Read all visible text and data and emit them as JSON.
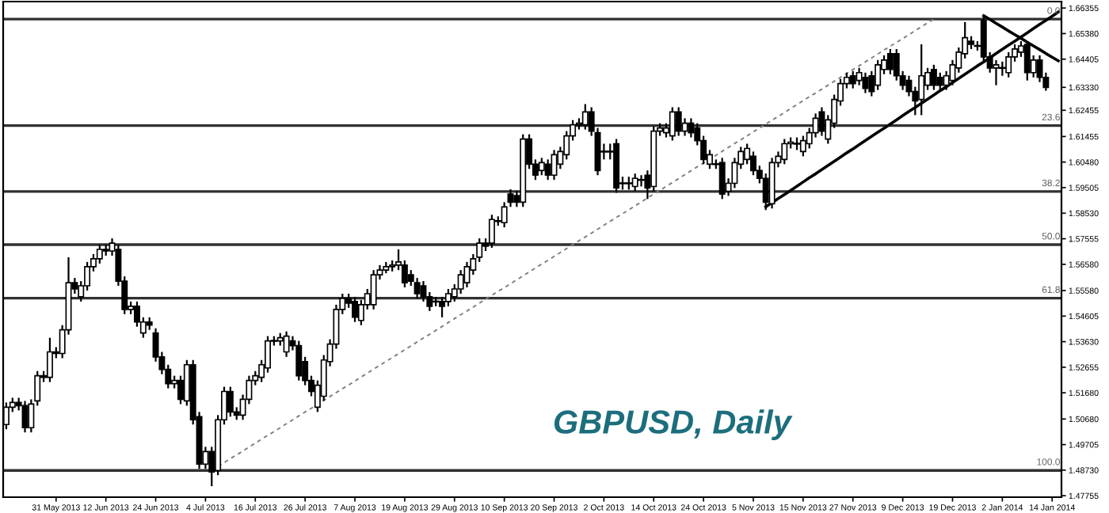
{
  "chart_data": {
    "type": "candlestick",
    "title": "GBPUSD, Daily",
    "categories": [
      null,
      null,
      null,
      null,
      null,
      null,
      null,
      null,
      "31 May 2013",
      null,
      null,
      null,
      null,
      null,
      null,
      null,
      "12 Jun 2013",
      null,
      null,
      null,
      null,
      null,
      null,
      null,
      "24 Jun 2013",
      null,
      null,
      null,
      null,
      null,
      null,
      null,
      "4 Jul 2013",
      null,
      null,
      null,
      null,
      null,
      null,
      null,
      "16 Jul 2013",
      null,
      null,
      null,
      null,
      null,
      null,
      null,
      "26 Jul 2013",
      null,
      null,
      null,
      null,
      null,
      null,
      null,
      "7 Aug 2013",
      null,
      null,
      null,
      null,
      null,
      null,
      null,
      "19 Aug 2013",
      null,
      null,
      null,
      null,
      null,
      null,
      null,
      "29 Aug 2013",
      null,
      null,
      null,
      null,
      null,
      null,
      null,
      "10 Sep 2013",
      null,
      null,
      null,
      null,
      null,
      null,
      null,
      "20 Sep 2013",
      null,
      null,
      null,
      null,
      null,
      null,
      null,
      "2 Oct 2013",
      null,
      null,
      null,
      null,
      null,
      null,
      null,
      "14 Oct 2013",
      null,
      null,
      null,
      null,
      null,
      null,
      null,
      "24 Oct 2013",
      null,
      null,
      null,
      null,
      null,
      null,
      null,
      "5 Nov 2013",
      null,
      null,
      null,
      null,
      null,
      null,
      null,
      "15 Nov 2013",
      null,
      null,
      null,
      null,
      null,
      null,
      null,
      "27 Nov 2013",
      null,
      null,
      null,
      null,
      null,
      null,
      null,
      "9 Dec 2013",
      null,
      null,
      null,
      null,
      null,
      null,
      null,
      "19 Dec 2013",
      null,
      null,
      null,
      null,
      null,
      null,
      null,
      "2 Jan 2014",
      null,
      null,
      null,
      null,
      null,
      null,
      null,
      "14 Jan 2014",
      null
    ],
    "ohlc": [
      [
        1.5047,
        1.5131,
        1.5029,
        1.5113
      ],
      [
        1.5113,
        1.5149,
        1.5095,
        1.5131
      ],
      [
        1.5131,
        1.5149,
        1.5101,
        1.5119
      ],
      [
        1.5119,
        1.5137,
        1.5017,
        1.5035
      ],
      [
        1.5035,
        1.5143,
        1.5017,
        1.5125
      ],
      [
        1.5137,
        1.5251,
        1.5119,
        1.5233
      ],
      [
        1.5233,
        1.5251,
        1.5209,
        1.5227
      ],
      [
        1.5227,
        1.5378,
        1.5209,
        1.5324
      ],
      [
        1.5324,
        1.5342,
        1.53,
        1.5318
      ],
      [
        1.5318,
        1.5426,
        1.53,
        1.5408
      ],
      [
        1.5408,
        1.5685,
        1.539,
        1.5588
      ],
      [
        1.5588,
        1.5606,
        1.5546,
        1.5564
      ],
      [
        1.5534,
        1.5594,
        1.5516,
        1.5576
      ],
      [
        1.5576,
        1.5667,
        1.5558,
        1.5649
      ],
      [
        1.5649,
        1.5697,
        1.5631,
        1.5679
      ],
      [
        1.5679,
        1.5733,
        1.5661,
        1.5715
      ],
      [
        1.5715,
        1.5733,
        1.5691,
        1.5709
      ],
      [
        1.5709,
        1.5757,
        1.5691,
        1.5739
      ],
      [
        1.5715,
        1.5733,
        1.5576,
        1.5594
      ],
      [
        1.5594,
        1.5612,
        1.5468,
        1.5486
      ],
      [
        1.5486,
        1.5516,
        1.5468,
        1.5498
      ],
      [
        1.5498,
        1.5516,
        1.542,
        1.5438
      ],
      [
        1.5396,
        1.5456,
        1.5378,
        1.5438
      ],
      [
        1.5438,
        1.5456,
        1.5408,
        1.5426
      ],
      [
        1.5396,
        1.5414,
        1.5287,
        1.5305
      ],
      [
        1.5305,
        1.5324,
        1.5239,
        1.5257
      ],
      [
        1.5257,
        1.5275,
        1.5185,
        1.5203
      ],
      [
        1.5203,
        1.5233,
        1.5185,
        1.5215
      ],
      [
        1.5215,
        1.5233,
        1.5125,
        1.5143
      ],
      [
        1.5137,
        1.5293,
        1.5119,
        1.5275
      ],
      [
        1.5275,
        1.5293,
        1.5047,
        1.5065
      ],
      [
        1.5077,
        1.5095,
        1.4878,
        1.4896
      ],
      [
        1.4896,
        1.4962,
        1.4878,
        1.4944
      ],
      [
        1.4944,
        1.4962,
        1.4812,
        1.4866
      ],
      [
        1.4872,
        1.5083,
        1.4854,
        1.5065
      ],
      [
        1.5065,
        1.5191,
        1.5047,
        1.5173
      ],
      [
        1.5173,
        1.5191,
        1.5077,
        1.5095
      ],
      [
        1.5095,
        1.5113,
        1.5065,
        1.5083
      ],
      [
        1.5083,
        1.5161,
        1.5065,
        1.5143
      ],
      [
        1.5143,
        1.5233,
        1.5125,
        1.5215
      ],
      [
        1.5215,
        1.5251,
        1.5197,
        1.5233
      ],
      [
        1.5227,
        1.5293,
        1.5209,
        1.5275
      ],
      [
        1.5263,
        1.5384,
        1.5245,
        1.5366
      ],
      [
        1.5366,
        1.5384,
        1.5348,
        1.5366
      ],
      [
        1.5366,
        1.5396,
        1.5348,
        1.5378
      ],
      [
        1.5324,
        1.5402,
        1.5305,
        1.5384
      ],
      [
        1.5366,
        1.5384,
        1.533,
        1.5348
      ],
      [
        1.5348,
        1.5366,
        1.5215,
        1.5233
      ],
      [
        1.5287,
        1.5305,
        1.5197,
        1.5215
      ],
      [
        1.5215,
        1.5233,
        1.5155,
        1.5173
      ],
      [
        1.5113,
        1.5215,
        1.5095,
        1.5197
      ],
      [
        1.5155,
        1.5312,
        1.5137,
        1.5293
      ],
      [
        1.5287,
        1.5372,
        1.5269,
        1.5354
      ],
      [
        1.5354,
        1.5504,
        1.5336,
        1.5486
      ],
      [
        1.5486,
        1.5546,
        1.5468,
        1.5528
      ],
      [
        1.5528,
        1.5546,
        1.5492,
        1.551
      ],
      [
        1.5516,
        1.5534,
        1.5438,
        1.5456
      ],
      [
        1.5444,
        1.5522,
        1.5426,
        1.5504
      ],
      [
        1.5504,
        1.5564,
        1.5486,
        1.5546
      ],
      [
        1.5504,
        1.5636,
        1.5486,
        1.5618
      ],
      [
        1.5618,
        1.5655,
        1.56,
        1.5636
      ],
      [
        1.5636,
        1.5667,
        1.5624,
        1.5649
      ],
      [
        1.5649,
        1.5673,
        1.5631,
        1.5655
      ],
      [
        1.5655,
        1.5715,
        1.5636,
        1.5667
      ],
      [
        1.5655,
        1.5673,
        1.557,
        1.5588
      ],
      [
        1.5618,
        1.5636,
        1.5576,
        1.5594
      ],
      [
        1.5588,
        1.5606,
        1.5528,
        1.5546
      ],
      [
        1.5576,
        1.5594,
        1.5516,
        1.5534
      ],
      [
        1.5534,
        1.5552,
        1.548,
        1.5498
      ],
      [
        1.5516,
        1.5534,
        1.5498,
        1.5516
      ],
      [
        1.5516,
        1.5534,
        1.5456,
        1.5498
      ],
      [
        1.5516,
        1.5564,
        1.5498,
        1.5546
      ],
      [
        1.5534,
        1.5582,
        1.5516,
        1.5564
      ],
      [
        1.5564,
        1.5636,
        1.5546,
        1.5618
      ],
      [
        1.5588,
        1.5667,
        1.557,
        1.5649
      ],
      [
        1.5636,
        1.5697,
        1.5618,
        1.5679
      ],
      [
        1.5685,
        1.5757,
        1.5667,
        1.5739
      ],
      [
        1.5739,
        1.5757,
        1.5709,
        1.5727
      ],
      [
        1.5739,
        1.5847,
        1.5721,
        1.5829
      ],
      [
        1.5823,
        1.5841,
        1.5805,
        1.5823
      ],
      [
        1.5817,
        1.5895,
        1.5799,
        1.5877
      ],
      [
        1.5926,
        1.5944,
        1.5877,
        1.5895
      ],
      [
        1.592,
        1.5938,
        1.5877,
        1.5895
      ],
      [
        1.5895,
        1.6154,
        1.5877,
        1.6136
      ],
      [
        1.6136,
        1.6154,
        1.6022,
        1.604
      ],
      [
        1.604,
        1.6058,
        1.598,
        1.5998
      ],
      [
        1.6016,
        1.6064,
        1.5998,
        1.6046
      ],
      [
        1.604,
        1.6058,
        1.598,
        1.5998
      ],
      [
        1.5998,
        1.6094,
        1.598,
        1.6076
      ],
      [
        1.604,
        1.6106,
        1.6022,
        1.6088
      ],
      [
        1.6076,
        1.6166,
        1.6058,
        1.6148
      ],
      [
        1.6148,
        1.6208,
        1.613,
        1.619
      ],
      [
        1.619,
        1.6215,
        1.6172,
        1.6196
      ],
      [
        1.619,
        1.6269,
        1.6172,
        1.6239
      ],
      [
        1.6239,
        1.6257,
        1.6148,
        1.6166
      ],
      [
        1.616,
        1.6178,
        1.5998,
        1.6016
      ],
      [
        1.6088,
        1.6118,
        1.6058,
        1.6088
      ],
      [
        1.6088,
        1.6118,
        1.6058,
        1.6088
      ],
      [
        1.6118,
        1.6136,
        1.5931,
        1.5949
      ],
      [
        1.5967,
        1.5992,
        1.5943,
        1.5967
      ],
      [
        1.5967,
        1.5992,
        1.5943,
        1.5967
      ],
      [
        1.5955,
        1.6004,
        1.5937,
        1.5986
      ],
      [
        1.598,
        1.5998,
        1.5955,
        1.598
      ],
      [
        1.5998,
        1.6016,
        1.5907,
        1.5949
      ],
      [
        1.5955,
        1.6184,
        1.5937,
        1.6166
      ],
      [
        1.6166,
        1.6196,
        1.6148,
        1.6178
      ],
      [
        1.616,
        1.6196,
        1.6142,
        1.6178
      ],
      [
        1.6148,
        1.6257,
        1.613,
        1.6239
      ],
      [
        1.6239,
        1.6257,
        1.6148,
        1.6166
      ],
      [
        1.6166,
        1.6215,
        1.6148,
        1.6196
      ],
      [
        1.6196,
        1.6215,
        1.6142,
        1.616
      ],
      [
        1.6178,
        1.6196,
        1.6112,
        1.613
      ],
      [
        1.613,
        1.6148,
        1.604,
        1.6058
      ],
      [
        1.604,
        1.6094,
        1.6022,
        1.6076
      ],
      [
        1.604,
        1.6058,
        1.6022,
        1.604
      ],
      [
        1.6046,
        1.6064,
        1.5907,
        1.5926
      ],
      [
        1.5937,
        1.5986,
        1.5919,
        1.5967
      ],
      [
        1.5967,
        1.6064,
        1.5949,
        1.6046
      ],
      [
        1.604,
        1.6106,
        1.6022,
        1.6088
      ],
      [
        1.6058,
        1.6118,
        1.604,
        1.61
      ],
      [
        1.607,
        1.6088,
        1.5998,
        1.6016
      ],
      [
        1.6016,
        1.6034,
        1.5967,
        1.5986
      ],
      [
        1.5986,
        1.6004,
        1.5865,
        1.5895
      ],
      [
        1.5889,
        1.6064,
        1.5871,
        1.6046
      ],
      [
        1.6046,
        1.6088,
        1.6028,
        1.607
      ],
      [
        1.6058,
        1.6136,
        1.604,
        1.6118
      ],
      [
        1.6118,
        1.6142,
        1.61,
        1.6124
      ],
      [
        1.6118,
        1.6142,
        1.6094,
        1.6118
      ],
      [
        1.6088,
        1.6148,
        1.607,
        1.613
      ],
      [
        1.6118,
        1.6178,
        1.61,
        1.616
      ],
      [
        1.616,
        1.6233,
        1.6142,
        1.6215
      ],
      [
        1.6239,
        1.6257,
        1.6148,
        1.6166
      ],
      [
        1.6136,
        1.6227,
        1.6118,
        1.6209
      ],
      [
        1.6196,
        1.6305,
        1.6178,
        1.6287
      ],
      [
        1.6281,
        1.6365,
        1.6263,
        1.6347
      ],
      [
        1.6347,
        1.6389,
        1.6329,
        1.6371
      ],
      [
        1.6377,
        1.6395,
        1.6329,
        1.6347
      ],
      [
        1.6359,
        1.6407,
        1.6341,
        1.6389
      ],
      [
        1.6371,
        1.6389,
        1.6311,
        1.6329
      ],
      [
        1.6377,
        1.6395,
        1.6299,
        1.6317
      ],
      [
        1.6341,
        1.6437,
        1.6323,
        1.6419
      ],
      [
        1.6401,
        1.6455,
        1.6383,
        1.6437
      ],
      [
        1.6461,
        1.6479,
        1.6383,
        1.6401
      ],
      [
        1.6461,
        1.6479,
        1.6359,
        1.6377
      ],
      [
        1.6377,
        1.6395,
        1.6323,
        1.6341
      ],
      [
        1.6359,
        1.6377,
        1.6299,
        1.6317
      ],
      [
        1.6317,
        1.6335,
        1.6227,
        1.6281
      ],
      [
        1.6287,
        1.6497,
        1.6227,
        1.6377
      ],
      [
        1.6341,
        1.6407,
        1.6323,
        1.6389
      ],
      [
        1.6401,
        1.6419,
        1.6323,
        1.6341
      ],
      [
        1.6371,
        1.6389,
        1.6323,
        1.6341
      ],
      [
        1.6341,
        1.6395,
        1.6323,
        1.6377
      ],
      [
        1.6359,
        1.6437,
        1.6341,
        1.6419
      ],
      [
        1.6407,
        1.6485,
        1.6389,
        1.6467
      ],
      [
        1.6461,
        1.6582,
        1.6443,
        1.6522
      ],
      [
        1.6509,
        1.6528,
        1.6479,
        1.6497
      ],
      [
        1.6491,
        1.6509,
        1.6473,
        1.6491
      ],
      [
        1.6588,
        1.6606,
        1.6431,
        1.6449
      ],
      [
        1.6449,
        1.6467,
        1.6389,
        1.6407
      ],
      [
        1.6407,
        1.6437,
        1.6341,
        1.6419
      ],
      [
        1.6407,
        1.6431,
        1.6377,
        1.6407
      ],
      [
        1.6389,
        1.6467,
        1.6371,
        1.6449
      ],
      [
        1.6449,
        1.6497,
        1.6431,
        1.6479
      ],
      [
        1.6467,
        1.6509,
        1.6449,
        1.6491
      ],
      [
        1.6497,
        1.6509,
        1.6359,
        1.6389
      ],
      [
        1.6389,
        1.6455,
        1.6371,
        1.6437
      ],
      [
        1.6437,
        1.6455,
        1.6353,
        1.6371
      ],
      [
        1.6371,
        1.6389,
        1.632,
        1.6333
      ],
      null,
      null
    ],
    "series": [
      {
        "type": "line",
        "line_style": "dashed",
        "color": "#808080",
        "values": [
          null,
          null,
          null,
          null,
          null,
          null,
          null,
          null,
          null,
          null,
          null,
          null,
          null,
          null,
          null,
          null,
          null,
          null,
          null,
          null,
          null,
          null,
          null,
          null,
          null,
          null,
          null,
          null,
          null,
          null,
          null,
          null,
          null,
          1.4872,
          1.4887,
          1.4902,
          1.4917,
          1.4931,
          1.4946,
          1.4961,
          1.4976,
          1.4991,
          1.5006,
          1.502,
          1.5035,
          1.505,
          1.5065,
          1.508,
          1.5095,
          1.5109,
          1.5124,
          1.5139,
          1.5154,
          1.5169,
          1.5184,
          1.5198,
          1.5213,
          1.5228,
          1.5243,
          1.5258,
          1.5273,
          1.5288,
          1.5302,
          1.5317,
          1.5332,
          1.5347,
          1.5362,
          1.5377,
          1.5391,
          1.5406,
          1.5421,
          1.5436,
          1.5451,
          1.5466,
          1.548,
          1.5495,
          1.551,
          1.5525,
          1.554,
          1.5555,
          1.5569,
          1.5584,
          1.5599,
          1.5614,
          1.5629,
          1.5644,
          1.5659,
          1.5673,
          1.5688,
          1.5703,
          1.5718,
          1.5733,
          1.5748,
          1.5762,
          1.5777,
          1.5792,
          1.5807,
          1.5822,
          1.5837,
          1.5851,
          1.5866,
          1.5881,
          1.5896,
          1.5911,
          1.5926,
          1.594,
          1.5955,
          1.597,
          1.5985,
          1.6,
          1.6015,
          1.603,
          1.6044,
          1.6059,
          1.6074,
          1.6089,
          1.6104,
          1.6119,
          1.6133,
          1.6148,
          1.6163,
          1.6178,
          1.6193,
          1.6208,
          1.6222,
          1.6237,
          1.6252,
          1.6267,
          1.6282,
          1.6297,
          1.6311,
          1.6326,
          1.6341,
          1.6356,
          1.6371,
          1.6386,
          1.6401,
          1.6415,
          1.643,
          1.6445,
          1.646,
          1.6475,
          1.649,
          1.6504,
          1.6519,
          1.6534,
          1.6549,
          1.6564,
          1.6579,
          1.6593,
          null,
          null,
          null,
          null,
          null,
          null,
          null,
          null,
          null,
          null,
          null,
          null,
          null,
          null,
          null,
          null,
          null,
          null,
          null,
          null
        ]
      },
      {
        "type": "line",
        "line_style": "solid",
        "color": "#000000",
        "values": [
          null,
          null,
          null,
          null,
          null,
          null,
          null,
          null,
          null,
          null,
          null,
          null,
          null,
          null,
          null,
          null,
          null,
          null,
          null,
          null,
          null,
          null,
          null,
          null,
          null,
          null,
          null,
          null,
          null,
          null,
          null,
          null,
          null,
          null,
          null,
          null,
          null,
          null,
          null,
          null,
          null,
          null,
          null,
          null,
          null,
          null,
          null,
          null,
          null,
          null,
          null,
          null,
          null,
          null,
          null,
          null,
          null,
          null,
          null,
          null,
          null,
          null,
          null,
          null,
          null,
          null,
          null,
          null,
          null,
          null,
          null,
          null,
          null,
          null,
          null,
          null,
          null,
          null,
          null,
          null,
          null,
          null,
          null,
          null,
          null,
          null,
          null,
          null,
          null,
          null,
          null,
          null,
          null,
          null,
          null,
          null,
          null,
          null,
          null,
          null,
          null,
          null,
          null,
          null,
          null,
          null,
          null,
          null,
          null,
          null,
          null,
          null,
          null,
          null,
          null,
          null,
          null,
          null,
          null,
          null,
          null,
          null,
          1.5877,
          1.5893,
          1.5909,
          1.5924,
          1.594,
          1.5956,
          1.5972,
          1.5988,
          1.6003,
          1.6019,
          1.6035,
          1.6051,
          1.6067,
          1.6083,
          1.6098,
          1.6114,
          1.613,
          1.6146,
          1.6162,
          1.6177,
          1.6193,
          1.6209,
          1.6225,
          1.6241,
          1.6256,
          1.6272,
          1.6288,
          1.6304,
          1.632,
          1.6335,
          1.6351,
          1.6367,
          1.6383,
          1.6399,
          1.6415,
          1.643,
          1.6446,
          1.6462,
          1.6478,
          1.6494,
          1.6509,
          1.6525,
          1.6541,
          1.6557,
          1.6573,
          1.6588,
          1.6604,
          1.662
        ]
      },
      {
        "type": "line",
        "line_style": "solid",
        "color": "#000000",
        "values": [
          null,
          null,
          null,
          null,
          null,
          null,
          null,
          null,
          null,
          null,
          null,
          null,
          null,
          null,
          null,
          null,
          null,
          null,
          null,
          null,
          null,
          null,
          null,
          null,
          null,
          null,
          null,
          null,
          null,
          null,
          null,
          null,
          null,
          null,
          null,
          null,
          null,
          null,
          null,
          null,
          null,
          null,
          null,
          null,
          null,
          null,
          null,
          null,
          null,
          null,
          null,
          null,
          null,
          null,
          null,
          null,
          null,
          null,
          null,
          null,
          null,
          null,
          null,
          null,
          null,
          null,
          null,
          null,
          null,
          null,
          null,
          null,
          null,
          null,
          null,
          null,
          null,
          null,
          null,
          null,
          null,
          null,
          null,
          null,
          null,
          null,
          null,
          null,
          null,
          null,
          null,
          null,
          null,
          null,
          null,
          null,
          null,
          null,
          null,
          null,
          null,
          null,
          null,
          null,
          null,
          null,
          null,
          null,
          null,
          null,
          null,
          null,
          null,
          null,
          null,
          null,
          null,
          null,
          null,
          null,
          null,
          null,
          null,
          null,
          null,
          null,
          null,
          null,
          null,
          null,
          null,
          null,
          null,
          null,
          null,
          null,
          null,
          null,
          null,
          null,
          null,
          null,
          null,
          null,
          null,
          null,
          null,
          null,
          null,
          null,
          null,
          null,
          null,
          null,
          null,
          null,
          null,
          1.6606,
          1.6592,
          1.6577,
          1.6563,
          1.6548,
          1.6534,
          1.652,
          1.6505,
          1.6491,
          1.6477,
          1.6462,
          1.6448,
          1.6434
        ]
      }
    ],
    "ylim": [
      1.477,
      1.666
    ],
    "yticks": [
      {
        "value": 1.66355,
        "label": "1.66355"
      },
      {
        "value": 1.6538,
        "label": "1.65380"
      },
      {
        "value": 1.64405,
        "label": "1.64405"
      },
      {
        "value": 1.6333,
        "label": "1.63330"
      },
      {
        "value": 1.62455,
        "label": "1.62455"
      },
      {
        "value": 1.61455,
        "label": "1.61455"
      },
      {
        "value": 1.6048,
        "label": "1.60480"
      },
      {
        "value": 1.59505,
        "label": "1.59505"
      },
      {
        "value": 1.5853,
        "label": "1.58530"
      },
      {
        "value": 1.57555,
        "label": "1.57555"
      },
      {
        "value": 1.5658,
        "label": "1.56580"
      },
      {
        "value": 1.5558,
        "label": "1.55580"
      },
      {
        "value": 1.54605,
        "label": "1.54605"
      },
      {
        "value": 1.5363,
        "label": "1.53630"
      },
      {
        "value": 1.52655,
        "label": "1.52655"
      },
      {
        "value": 1.5168,
        "label": "1.51680"
      },
      {
        "value": 1.5068,
        "label": "1.50680"
      },
      {
        "value": 1.49705,
        "label": "1.49705"
      },
      {
        "value": 1.4873,
        "label": "1.48730"
      },
      {
        "value": 1.47755,
        "label": "1.47755"
      }
    ],
    "ref_lines": [
      {
        "axis": "y",
        "value": 1.6593,
        "color": "#303030"
      },
      {
        "axis": "y",
        "value": 1.6187,
        "color": "#303030"
      },
      {
        "axis": "y",
        "value": 1.5936,
        "color": "#303030"
      },
      {
        "axis": "y",
        "value": 1.5733,
        "color": "#303030"
      },
      {
        "axis": "y",
        "value": 1.5529,
        "color": "#303030"
      },
      {
        "axis": "y",
        "value": 1.4872,
        "color": "#303030"
      }
    ],
    "annotations": [
      {
        "text": "0.0",
        "y": 1.6593
      },
      {
        "text": "23.6",
        "y": 1.6187
      },
      {
        "text": "38.2",
        "y": 1.5936
      },
      {
        "text": "50.0",
        "y": 1.5733
      },
      {
        "text": "61.8",
        "y": 1.5529
      },
      {
        "text": "100.0",
        "y": 1.4872
      }
    ]
  }
}
